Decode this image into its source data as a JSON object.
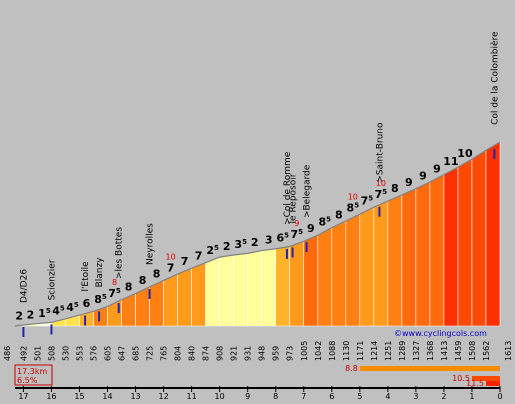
{
  "chart_data": {
    "type": "area",
    "title": "",
    "summary": {
      "distance": "17.3km",
      "avg_grade": "6.5%"
    },
    "credit": "©www.cyclingcols.com",
    "start_altitude": "486",
    "summit_altitude": "1613",
    "x_ticks": [
      "17",
      "16",
      "15",
      "14",
      "13",
      "12",
      "11",
      "10",
      "9",
      "8",
      "7",
      "6",
      "5",
      "4",
      "3",
      "2",
      "1",
      "0"
    ],
    "segments": [
      {
        "km": 17.0,
        "grade": "2",
        "alt": "492"
      },
      {
        "km": 16.5,
        "grade": "2",
        "alt": "501"
      },
      {
        "km": 16.0,
        "grade": "1.5",
        "alt": "508"
      },
      {
        "km": 15.5,
        "grade": "4.5",
        "alt": "530"
      },
      {
        "km": 15.0,
        "grade": "4.5",
        "alt": "553"
      },
      {
        "km": 14.5,
        "grade": "6",
        "alt": "576"
      },
      {
        "km": 14.0,
        "grade": "8.5",
        "alt": "605"
      },
      {
        "km": 13.5,
        "grade": "7.5",
        "alt": "647"
      },
      {
        "km": 13.0,
        "grade": "8",
        "alt": "685"
      },
      {
        "km": 12.5,
        "grade": "8",
        "alt": "725"
      },
      {
        "km": 12.0,
        "grade": "8",
        "alt": "765"
      },
      {
        "km": 11.5,
        "grade": "7",
        "alt": "804"
      },
      {
        "km": 11.0,
        "grade": "7",
        "alt": "840"
      },
      {
        "km": 10.5,
        "grade": "7",
        "alt": "874"
      },
      {
        "km": 10.0,
        "grade": "2.5",
        "alt": "908"
      },
      {
        "km": 9.5,
        "grade": "2",
        "alt": "921"
      },
      {
        "km": 9.0,
        "grade": "3.5",
        "alt": "931"
      },
      {
        "km": 8.5,
        "grade": "2",
        "alt": "948"
      },
      {
        "km": 8.0,
        "grade": "3",
        "alt": "959"
      },
      {
        "km": 7.5,
        "grade": "6.5",
        "alt": "973"
      },
      {
        "km": 7.0,
        "grade": "7.5",
        "alt": "1005"
      },
      {
        "km": 6.5,
        "grade": "9",
        "alt": "1042"
      },
      {
        "km": 6.0,
        "grade": "8.5",
        "alt": "1088"
      },
      {
        "km": 5.5,
        "grade": "8",
        "alt": "1130"
      },
      {
        "km": 5.0,
        "grade": "8.5",
        "alt": "1171"
      },
      {
        "km": 4.5,
        "grade": "7.5",
        "alt": "1214"
      },
      {
        "km": 4.0,
        "grade": "7.5",
        "alt": "1251"
      },
      {
        "km": 3.5,
        "grade": "8",
        "alt": "1289"
      },
      {
        "km": 3.0,
        "grade": "9",
        "alt": "1327"
      },
      {
        "km": 2.5,
        "grade": "9",
        "alt": "1368"
      },
      {
        "km": 2.0,
        "grade": "9",
        "alt": "1413"
      },
      {
        "km": 1.5,
        "grade": "11",
        "alt": "1459"
      },
      {
        "km": 1.0,
        "grade": "10",
        "alt": "1508"
      },
      {
        "km": 0.5,
        "grade": "",
        "alt": "1562"
      }
    ],
    "steep_markers": [
      {
        "km": 13.75,
        "value": "8"
      },
      {
        "km": 11.75,
        "value": "10"
      },
      {
        "km": 7.25,
        "value": "9"
      },
      {
        "km": 5.25,
        "value": "10"
      },
      {
        "km": 4.25,
        "value": "10"
      }
    ],
    "places": [
      {
        "km": 17.0,
        "name": "D4/D26"
      },
      {
        "km": 16.0,
        "name": "Scionzier"
      },
      {
        "km": 14.8,
        "name": "l'Etoile"
      },
      {
        "km": 14.3,
        "name": "Blanzy"
      },
      {
        "km": 13.6,
        "name": ">les Bottes"
      },
      {
        "km": 12.5,
        "name": "Neyrolles"
      },
      {
        "km": 7.6,
        "name": ">Col de Romme"
      },
      {
        "km": 7.4,
        "name": "le Reposoir"
      },
      {
        "km": 6.9,
        "name": ">Belegarde"
      },
      {
        "km": 4.3,
        "name": ">Saint-Bruno"
      },
      {
        "km": 0.2,
        "name": "Col de la Colombière"
      }
    ],
    "steepest": [
      {
        "label": "8.8",
        "km_from": 5.0,
        "km_to": 0
      },
      {
        "label": "10.5",
        "km_from": 1.0,
        "km_to": 0
      },
      {
        "label": "11.5",
        "km_from": 0.5,
        "km_to": 0
      }
    ],
    "xlabel": "",
    "ylabel": "",
    "grid": false,
    "legend": "none"
  }
}
